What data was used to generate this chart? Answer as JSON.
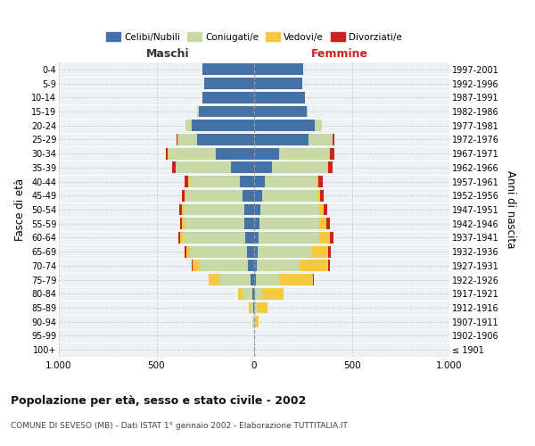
{
  "age_groups": [
    "100+",
    "95-99",
    "90-94",
    "85-89",
    "80-84",
    "75-79",
    "70-74",
    "65-69",
    "60-64",
    "55-59",
    "50-54",
    "45-49",
    "40-44",
    "35-39",
    "30-34",
    "25-29",
    "20-24",
    "15-19",
    "10-14",
    "5-9",
    "0-4"
  ],
  "birth_years": [
    "≤ 1901",
    "1902-1906",
    "1907-1911",
    "1912-1916",
    "1917-1921",
    "1922-1926",
    "1927-1931",
    "1932-1936",
    "1937-1941",
    "1942-1946",
    "1947-1951",
    "1952-1956",
    "1957-1961",
    "1962-1966",
    "1967-1971",
    "1972-1976",
    "1977-1981",
    "1982-1986",
    "1987-1991",
    "1992-1996",
    "1997-2001"
  ],
  "male_celibe": [
    1,
    1,
    2,
    3,
    8,
    20,
    30,
    38,
    45,
    48,
    52,
    60,
    75,
    120,
    195,
    290,
    320,
    285,
    265,
    255,
    265
  ],
  "male_coniugato": [
    0,
    1,
    5,
    15,
    50,
    160,
    250,
    290,
    320,
    310,
    310,
    290,
    260,
    280,
    245,
    100,
    30,
    5,
    2,
    1,
    1
  ],
  "male_vedovo": [
    0,
    0,
    3,
    8,
    25,
    55,
    35,
    20,
    12,
    10,
    8,
    6,
    5,
    4,
    3,
    3,
    1,
    0,
    0,
    0,
    0
  ],
  "male_divorziato": [
    0,
    0,
    0,
    0,
    0,
    0,
    5,
    8,
    10,
    12,
    14,
    15,
    18,
    15,
    10,
    3,
    1,
    0,
    0,
    0,
    0
  ],
  "female_celibe": [
    0,
    0,
    1,
    2,
    4,
    8,
    15,
    20,
    25,
    28,
    32,
    40,
    55,
    90,
    130,
    280,
    310,
    270,
    260,
    245,
    250
  ],
  "female_coniugata": [
    0,
    0,
    3,
    12,
    35,
    120,
    220,
    270,
    310,
    305,
    300,
    285,
    265,
    285,
    255,
    120,
    35,
    5,
    2,
    1,
    1
  ],
  "female_vedova": [
    0,
    2,
    20,
    55,
    110,
    175,
    145,
    90,
    55,
    35,
    22,
    12,
    8,
    5,
    5,
    4,
    2,
    0,
    0,
    0,
    0
  ],
  "female_divorziata": [
    0,
    0,
    0,
    0,
    0,
    2,
    8,
    12,
    15,
    18,
    20,
    18,
    22,
    22,
    20,
    8,
    2,
    0,
    0,
    0,
    0
  ],
  "color_celibe": "#4472a8",
  "color_coniugato": "#c8daa4",
  "color_vedovo": "#f5c842",
  "color_divorziato": "#cc2222",
  "title": "Popolazione per età, sesso e stato civile - 2002",
  "subtitle": "COMUNE DI SEVESO (MB) - Dati ISTAT 1° gennaio 2002 - Elaborazione TUTTITALIA.IT",
  "xlabel_left": "Maschi",
  "xlabel_right": "Femmine",
  "ylabel_left": "Fasce di età",
  "ylabel_right": "Anni di nascita",
  "xlim": 1000,
  "bg_color": "#ffffff",
  "plot_bg_color": "#eef2f7",
  "grid_color": "#cccccc",
  "legend_labels": [
    "Celibi/Nubili",
    "Coniugati/e",
    "Vedovi/e",
    "Divorziati/e"
  ]
}
